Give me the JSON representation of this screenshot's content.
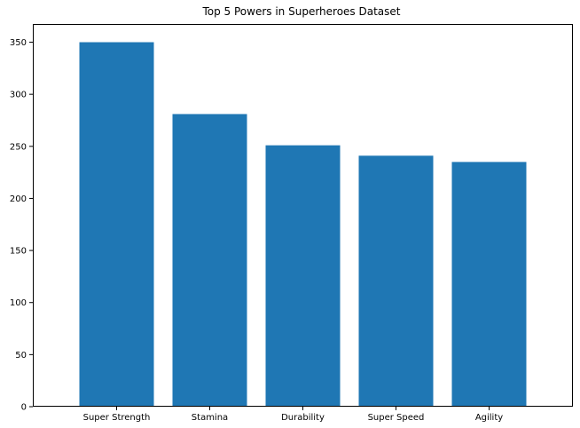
{
  "chart_data": {
    "type": "bar",
    "title": "Top 5 Powers in Superheroes Dataset",
    "xlabel": "",
    "ylabel": "",
    "categories": [
      "Super Strength",
      "Stamina",
      "Durability",
      "Super Speed",
      "Agility"
    ],
    "values": [
      350,
      281,
      251,
      241,
      235
    ],
    "ylim": [
      0,
      367.5
    ],
    "yticks": [
      0,
      50,
      100,
      150,
      200,
      250,
      300,
      350
    ],
    "grid": false,
    "legend": "none",
    "bar_color": "#1f77b4"
  }
}
